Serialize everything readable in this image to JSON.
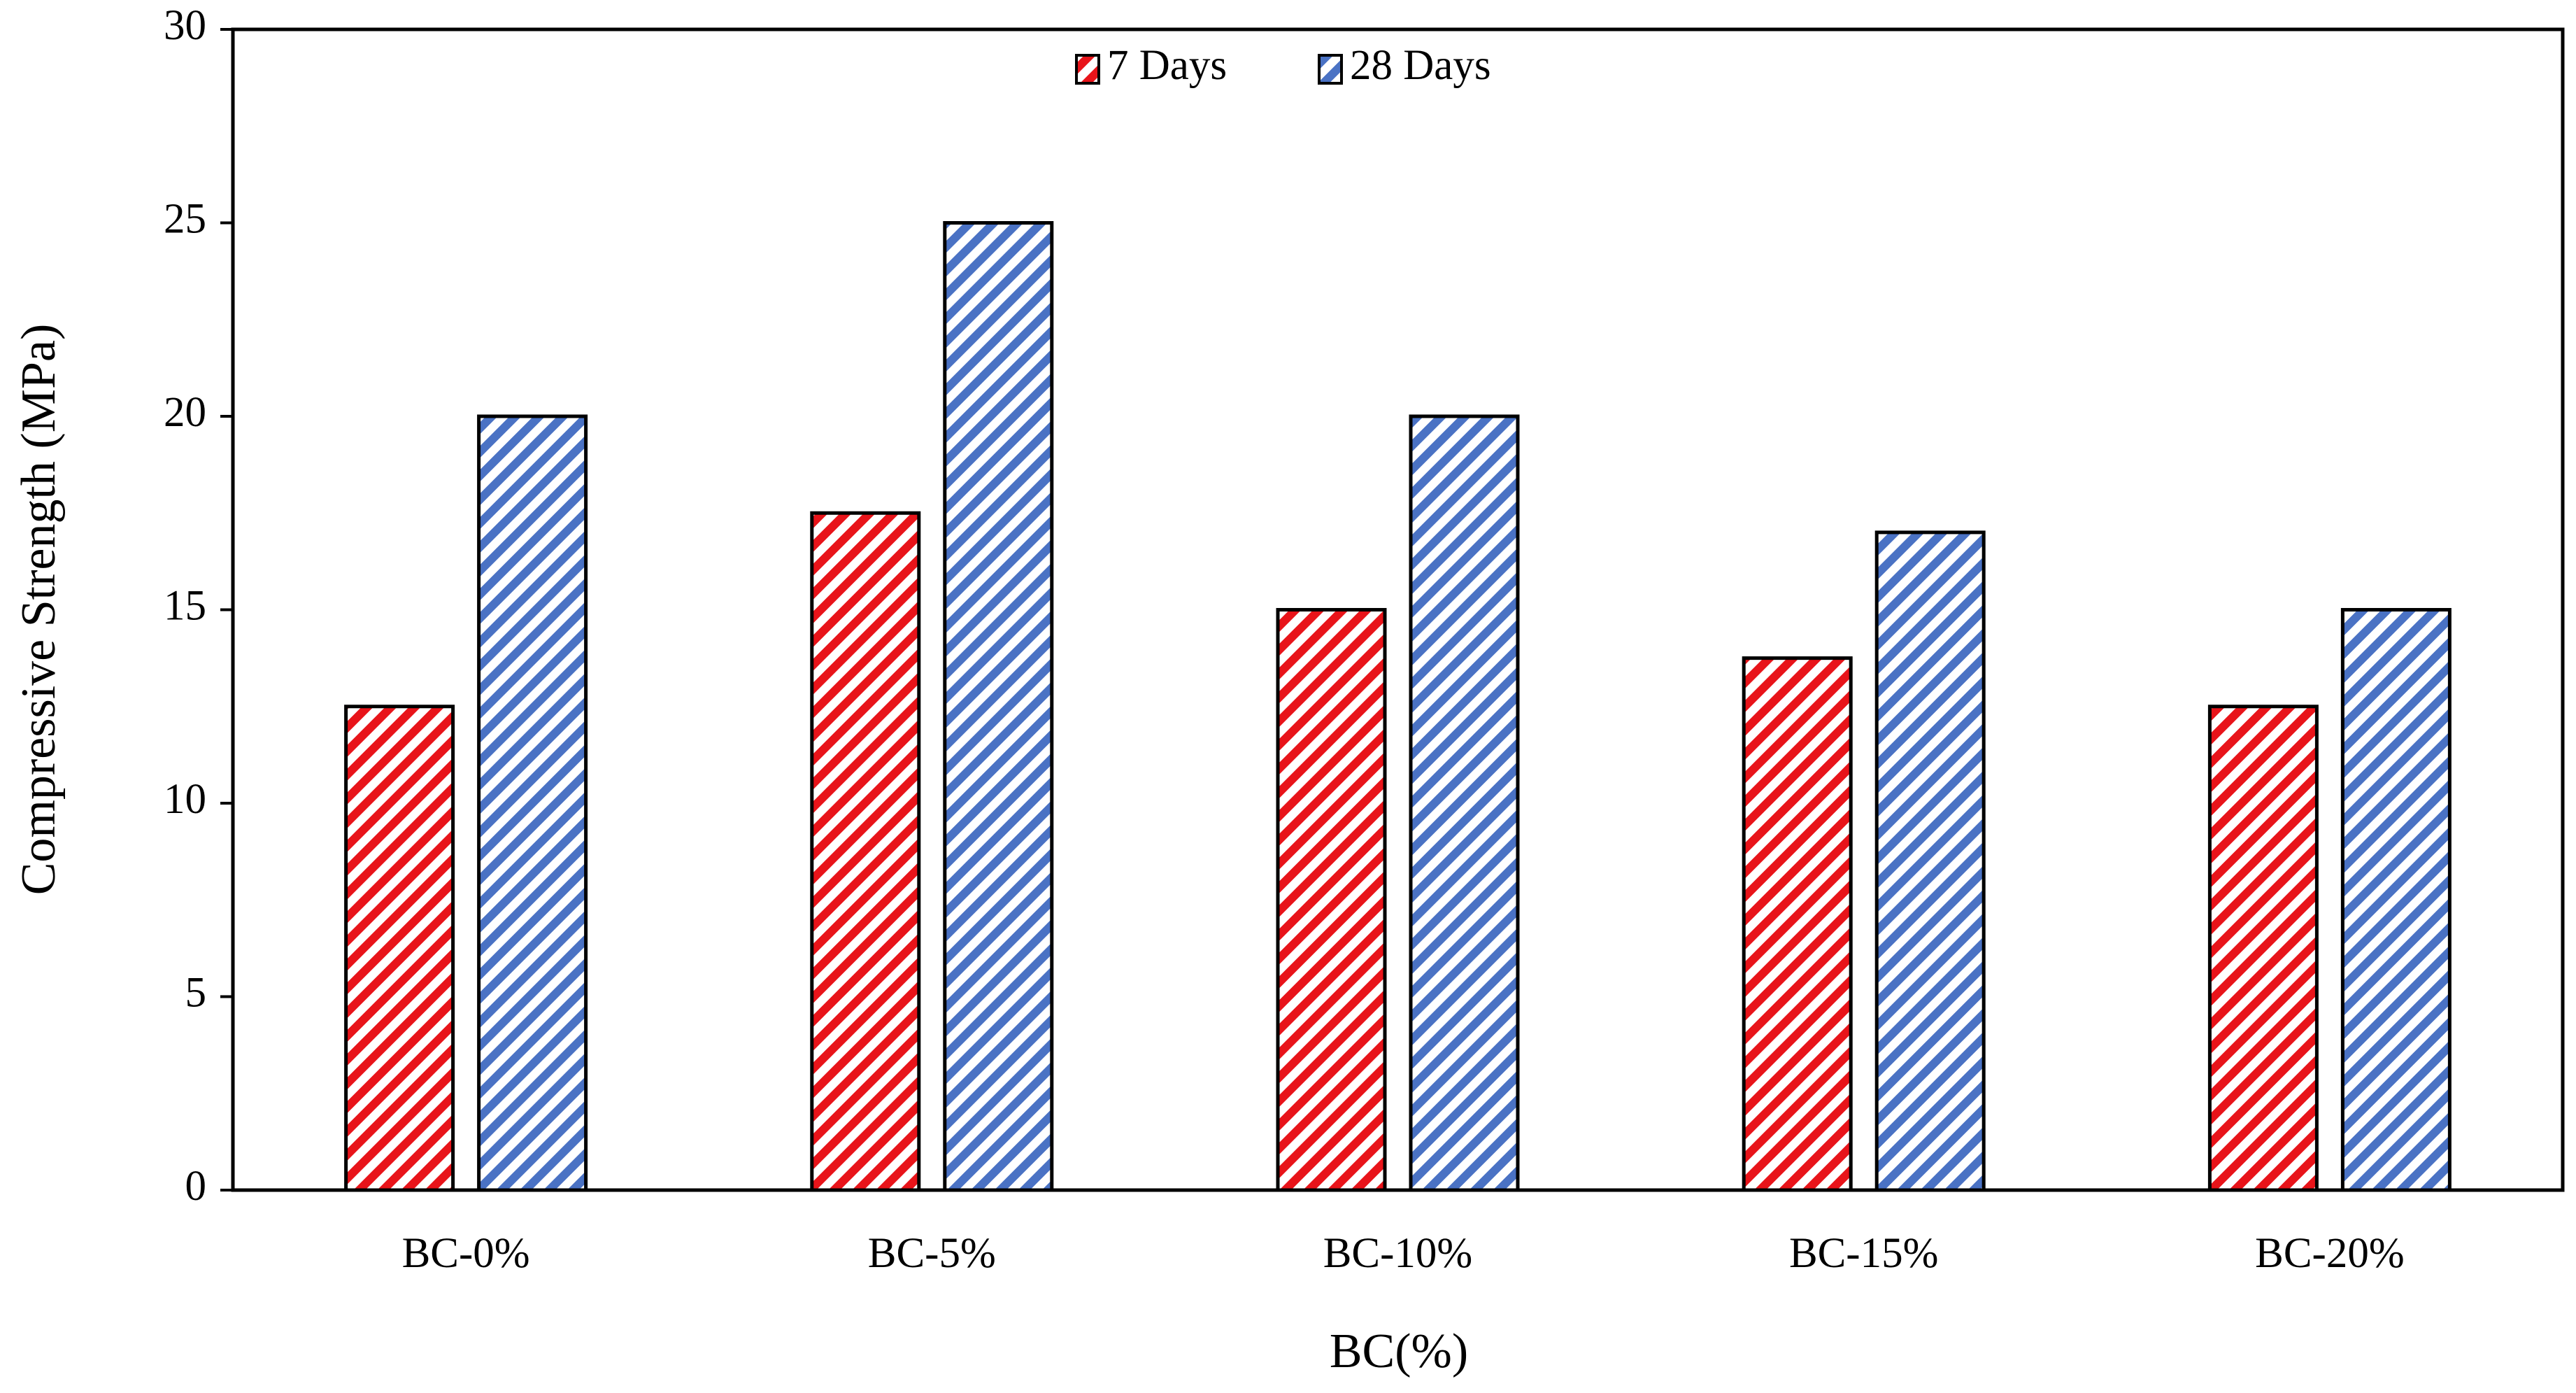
{
  "chart_data": {
    "type": "bar",
    "title_x": "BC(%)",
    "ylabel": "Compressive Strength (MPa)",
    "categories": [
      "BC-0%",
      "BC-5%",
      "BC-10%",
      "BC-15%",
      "BC-20%"
    ],
    "series": [
      {
        "name": "7 Days",
        "color": "#e8141a",
        "values": [
          12.5,
          17.5,
          15,
          13.75,
          12.5
        ]
      },
      {
        "name": "28 Days",
        "color": "#4a72c4",
        "values": [
          20,
          25,
          20,
          17,
          15
        ]
      }
    ],
    "ylim": [
      0,
      30
    ],
    "yticks": [
      0,
      5,
      10,
      15,
      20,
      25,
      30
    ],
    "hatch": true,
    "legend": "upper center"
  }
}
